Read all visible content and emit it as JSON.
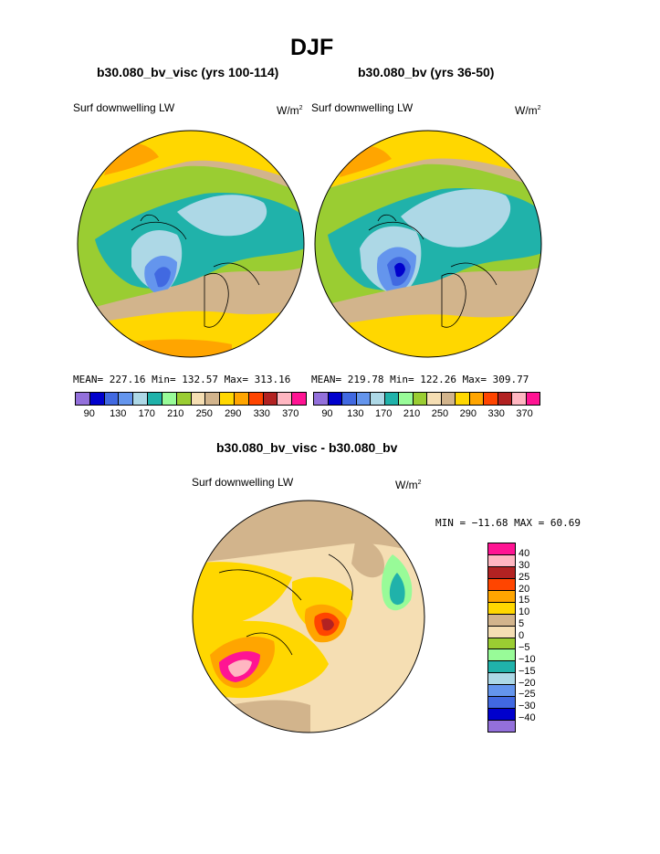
{
  "title": "DJF",
  "panels": [
    {
      "case": "b30.080_bv_visc (yrs 100-114)",
      "variable": "Surf downwelling LW",
      "units": "W/m",
      "units_exp": "2",
      "stats": "MEAN= 227.16  Min= 132.57  Max= 313.16"
    },
    {
      "case": "b30.080_bv (yrs 36-50)",
      "variable": "Surf downwelling LW",
      "units": "W/m",
      "units_exp": "2",
      "stats": "MEAN= 219.78  Min= 122.26  Max= 309.77"
    }
  ],
  "abs_colorbar": {
    "colors": [
      "#9370db",
      "#0000cd",
      "#4169e1",
      "#6495ed",
      "#add8e6",
      "#20b2aa",
      "#98fb98",
      "#9acd32",
      "#f5deb3",
      "#d2b48c",
      "#ffd700",
      "#ffa500",
      "#ff4500",
      "#b22222",
      "#ffb6c1",
      "#ff1493"
    ],
    "ticks": [
      "90",
      "130",
      "170",
      "210",
      "250",
      "290",
      "330",
      "370"
    ]
  },
  "diff": {
    "case": "b30.080_bv_visc - b30.080_bv",
    "variable": "Surf downwelling LW",
    "units": "W/m",
    "units_exp": "2",
    "stats": "MIN = −11.68 MAX =  60.69",
    "colors": [
      "#ff1493",
      "#ffb6c1",
      "#b22222",
      "#ff4500",
      "#ffa500",
      "#ffd700",
      "#d2b48c",
      "#f5deb3",
      "#9acd32",
      "#98fb98",
      "#20b2aa",
      "#add8e6",
      "#6495ed",
      "#4169e1",
      "#0000cd",
      "#9370db"
    ],
    "ticks": [
      "40",
      "30",
      "25",
      "20",
      "15",
      "10",
      "5",
      "0",
      "−5",
      "−10",
      "−15",
      "−20",
      "−25",
      "−30",
      "−40"
    ]
  }
}
